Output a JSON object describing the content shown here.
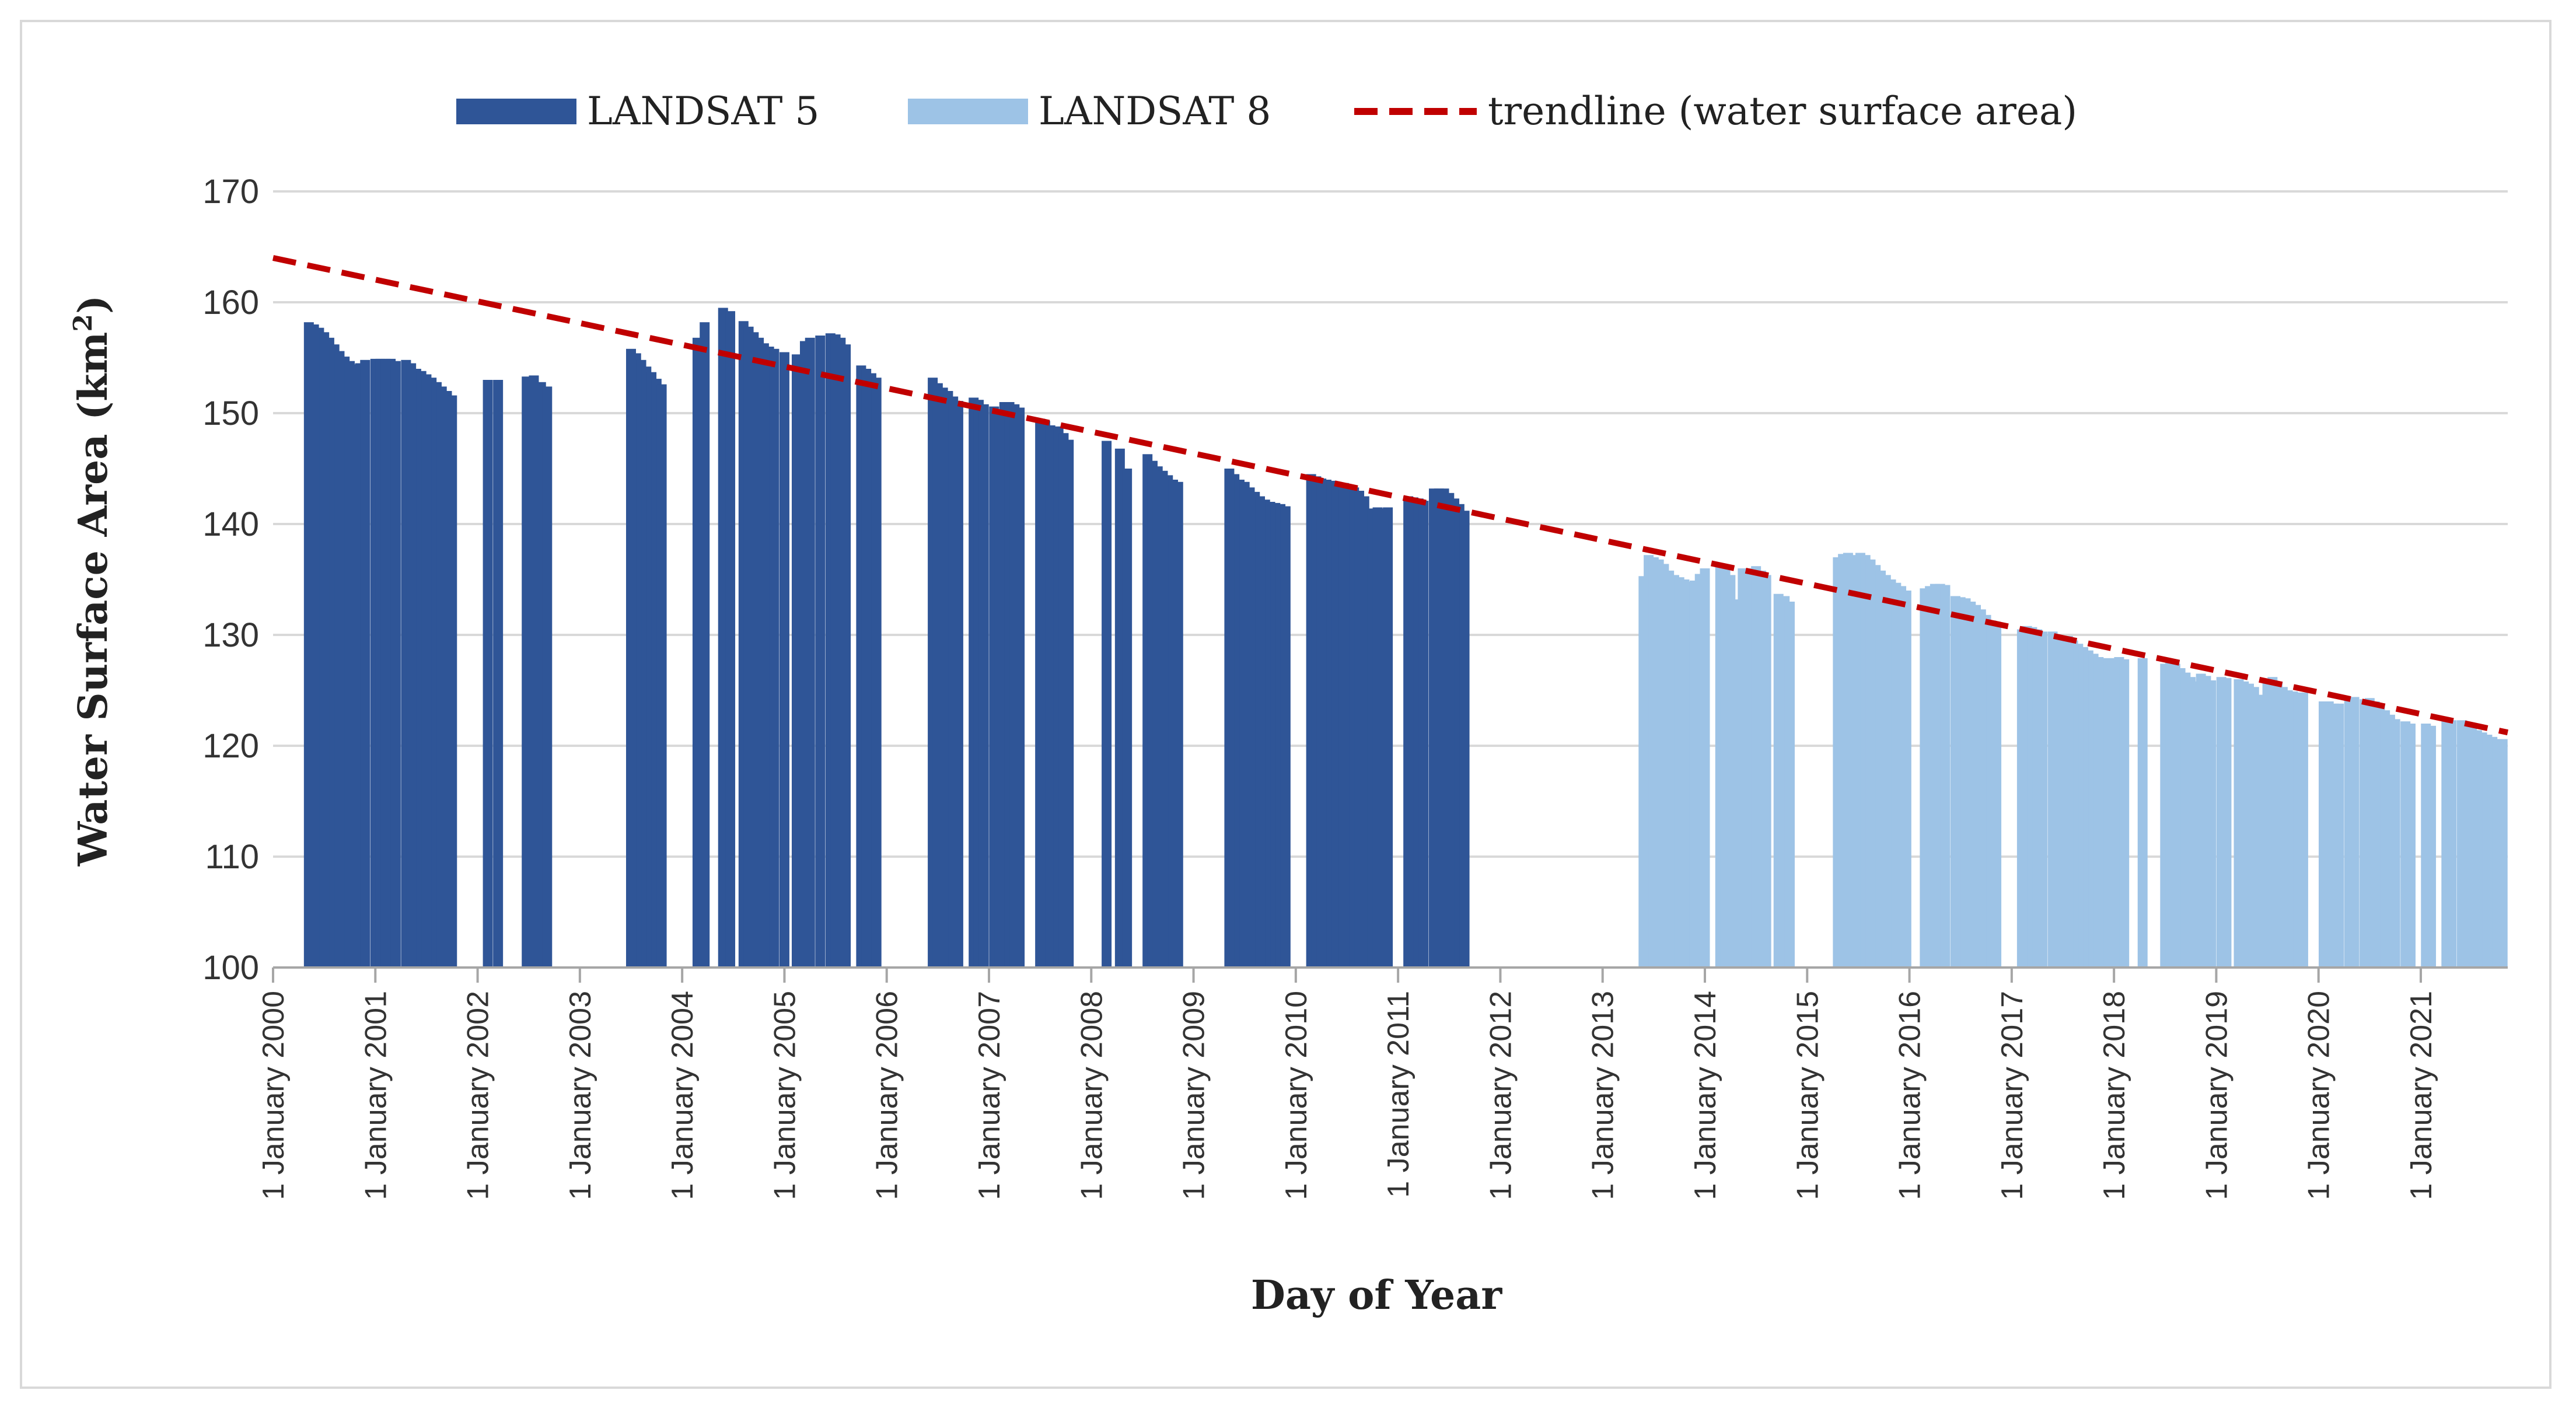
{
  "chart_data": {
    "type": "bar",
    "title": "",
    "xlabel": "Day of Year",
    "ylabel": "Water Surface Area (km",
    "ylabel_superscript": "2",
    "ylabel_close": ")",
    "ylim": [
      100,
      170
    ],
    "yticks": [
      100,
      110,
      120,
      130,
      140,
      150,
      160,
      170
    ],
    "grid": true,
    "legend_position": "top",
    "xlim": [
      2000.0,
      2021.85
    ],
    "x_tick_years": [
      2000,
      2001,
      2002,
      2003,
      2004,
      2005,
      2006,
      2007,
      2008,
      2009,
      2010,
      2011,
      2012,
      2013,
      2014,
      2015,
      2016,
      2017,
      2018,
      2019,
      2020,
      2021
    ],
    "x_tick_labels": [
      "1 January 2000",
      "1 January 2001",
      "1 January 2002",
      "1 January 2003",
      "1 January 2004",
      "1 January 2005",
      "1 January 2006",
      "1 January 2007",
      "1 January 2008",
      "1 January 2009",
      "1 January 2010",
      "1 January 2011",
      "1 January 2012",
      "1 January 2013",
      "1 January 2014",
      "1 January 2015",
      "1 January 2016",
      "1 January 2017",
      "1 January 2018",
      "1 January 2019",
      "1 January 2020",
      "1 January 2021"
    ],
    "series": [
      {
        "name": "LANDSAT 5",
        "color": "#2f5597",
        "points": [
          [
            2000.35,
            158.2
          ],
          [
            2000.4,
            158.0
          ],
          [
            2000.45,
            157.7
          ],
          [
            2000.5,
            157.3
          ],
          [
            2000.55,
            156.8
          ],
          [
            2000.6,
            156.2
          ],
          [
            2000.65,
            155.6
          ],
          [
            2000.7,
            155.1
          ],
          [
            2000.75,
            154.7
          ],
          [
            2000.8,
            154.4
          ],
          [
            2000.85,
            154.5
          ],
          [
            2000.9,
            154.8
          ],
          [
            2001.0,
            154.9
          ],
          [
            2001.05,
            154.9
          ],
          [
            2001.1,
            154.9
          ],
          [
            2001.15,
            154.9
          ],
          [
            2001.2,
            154.7
          ],
          [
            2001.3,
            154.8
          ],
          [
            2001.35,
            154.5
          ],
          [
            2001.4,
            154.0
          ],
          [
            2001.45,
            153.8
          ],
          [
            2001.5,
            153.5
          ],
          [
            2001.55,
            153.2
          ],
          [
            2001.6,
            152.8
          ],
          [
            2001.65,
            152.4
          ],
          [
            2001.7,
            152.0
          ],
          [
            2001.75,
            151.6
          ],
          [
            2002.1,
            153.0
          ],
          [
            2002.2,
            153.0
          ],
          [
            2002.48,
            153.3
          ],
          [
            2002.55,
            153.4
          ],
          [
            2002.62,
            152.8
          ],
          [
            2002.68,
            152.4
          ],
          [
            2003.5,
            155.8
          ],
          [
            2003.55,
            155.4
          ],
          [
            2003.6,
            154.8
          ],
          [
            2003.65,
            154.2
          ],
          [
            2003.7,
            153.7
          ],
          [
            2003.75,
            153.1
          ],
          [
            2003.8,
            152.6
          ],
          [
            2004.15,
            156.8
          ],
          [
            2004.22,
            158.2
          ],
          [
            2004.4,
            159.5
          ],
          [
            2004.47,
            159.2
          ],
          [
            2004.6,
            158.3
          ],
          [
            2004.65,
            157.8
          ],
          [
            2004.7,
            157.3
          ],
          [
            2004.75,
            156.8
          ],
          [
            2004.8,
            156.3
          ],
          [
            2004.85,
            156.0
          ],
          [
            2004.9,
            155.8
          ],
          [
            2005.0,
            155.5
          ],
          [
            2005.12,
            155.3
          ],
          [
            2005.2,
            156.5
          ],
          [
            2005.25,
            156.8
          ],
          [
            2005.35,
            157.0
          ],
          [
            2005.45,
            157.2
          ],
          [
            2005.5,
            157.1
          ],
          [
            2005.55,
            156.8
          ],
          [
            2005.6,
            156.2
          ],
          [
            2005.75,
            154.3
          ],
          [
            2005.8,
            154.0
          ],
          [
            2005.85,
            153.6
          ],
          [
            2005.9,
            153.2
          ],
          [
            2006.45,
            153.2
          ],
          [
            2006.5,
            152.7
          ],
          [
            2006.55,
            152.3
          ],
          [
            2006.6,
            152.0
          ],
          [
            2006.65,
            151.5
          ],
          [
            2006.7,
            151.1
          ],
          [
            2006.85,
            151.4
          ],
          [
            2006.9,
            151.2
          ],
          [
            2006.95,
            150.8
          ],
          [
            2007.05,
            150.6
          ],
          [
            2007.1,
            150.2
          ],
          [
            2007.15,
            151.0
          ],
          [
            2007.2,
            151.0
          ],
          [
            2007.25,
            150.8
          ],
          [
            2007.3,
            150.5
          ],
          [
            2007.5,
            149.5
          ],
          [
            2007.55,
            149.3
          ],
          [
            2007.6,
            148.9
          ],
          [
            2007.68,
            148.8
          ],
          [
            2007.73,
            148.2
          ],
          [
            2007.78,
            147.6
          ],
          [
            2008.15,
            147.5
          ],
          [
            2008.28,
            146.8
          ],
          [
            2008.35,
            145.0
          ],
          [
            2008.55,
            146.3
          ],
          [
            2008.6,
            145.7
          ],
          [
            2008.65,
            145.2
          ],
          [
            2008.7,
            144.8
          ],
          [
            2008.75,
            144.4
          ],
          [
            2008.8,
            144.0
          ],
          [
            2008.85,
            143.8
          ],
          [
            2009.35,
            145.0
          ],
          [
            2009.4,
            144.5
          ],
          [
            2009.45,
            144.0
          ],
          [
            2009.5,
            143.8
          ],
          [
            2009.55,
            143.3
          ],
          [
            2009.6,
            142.9
          ],
          [
            2009.65,
            142.5
          ],
          [
            2009.7,
            142.2
          ],
          [
            2009.75,
            142.0
          ],
          [
            2009.8,
            141.9
          ],
          [
            2009.85,
            141.8
          ],
          [
            2009.9,
            141.6
          ],
          [
            2010.15,
            144.5
          ],
          [
            2010.2,
            144.3
          ],
          [
            2010.25,
            144.1
          ],
          [
            2010.3,
            144.0
          ],
          [
            2010.35,
            143.9
          ],
          [
            2010.4,
            143.8
          ],
          [
            2010.47,
            143.7
          ],
          [
            2010.52,
            143.5
          ],
          [
            2010.57,
            143.3
          ],
          [
            2010.62,
            143.0
          ],
          [
            2010.67,
            142.5
          ],
          [
            2010.75,
            141.4
          ],
          [
            2010.8,
            141.5
          ],
          [
            2010.85,
            141.4
          ],
          [
            2010.9,
            141.5
          ],
          [
            2011.1,
            142.5
          ],
          [
            2011.15,
            142.4
          ],
          [
            2011.2,
            142.3
          ],
          [
            2011.25,
            142.1
          ],
          [
            2011.35,
            143.2
          ],
          [
            2011.4,
            143.2
          ],
          [
            2011.45,
            143.2
          ],
          [
            2011.5,
            142.8
          ],
          [
            2011.55,
            142.3
          ],
          [
            2011.6,
            141.8
          ],
          [
            2011.65,
            141.2
          ]
        ]
      },
      {
        "name": "LANDSAT 8",
        "color": "#9dc3e6",
        "points": [
          [
            2013.4,
            135.3
          ],
          [
            2013.45,
            137.2
          ],
          [
            2013.5,
            137.0
          ],
          [
            2013.55,
            136.8
          ],
          [
            2013.6,
            136.4
          ],
          [
            2013.65,
            135.8
          ],
          [
            2013.7,
            135.4
          ],
          [
            2013.75,
            135.2
          ],
          [
            2013.8,
            135.0
          ],
          [
            2013.85,
            134.8
          ],
          [
            2013.9,
            134.9
          ],
          [
            2013.95,
            135.5
          ],
          [
            2014.0,
            136.0
          ],
          [
            2014.15,
            136.2
          ],
          [
            2014.2,
            136.0
          ],
          [
            2014.25,
            135.4
          ],
          [
            2014.32,
            133.2
          ],
          [
            2014.37,
            136.0
          ],
          [
            2014.45,
            136.0
          ],
          [
            2014.5,
            136.2
          ],
          [
            2014.55,
            135.8
          ],
          [
            2014.6,
            135.4
          ],
          [
            2014.72,
            133.7
          ],
          [
            2014.78,
            133.5
          ],
          [
            2014.83,
            133.0
          ],
          [
            2015.3,
            137.0
          ],
          [
            2015.35,
            137.3
          ],
          [
            2015.4,
            137.4
          ],
          [
            2015.45,
            137.2
          ],
          [
            2015.52,
            137.4
          ],
          [
            2015.57,
            137.2
          ],
          [
            2015.62,
            136.8
          ],
          [
            2015.67,
            136.3
          ],
          [
            2015.72,
            135.8
          ],
          [
            2015.77,
            135.4
          ],
          [
            2015.82,
            135.0
          ],
          [
            2015.87,
            134.7
          ],
          [
            2015.92,
            134.4
          ],
          [
            2015.97,
            134.0
          ],
          [
            2016.15,
            134.2
          ],
          [
            2016.2,
            134.4
          ],
          [
            2016.25,
            134.6
          ],
          [
            2016.3,
            134.6
          ],
          [
            2016.35,
            134.5
          ],
          [
            2016.45,
            133.5
          ],
          [
            2016.5,
            133.4
          ],
          [
            2016.55,
            133.3
          ],
          [
            2016.6,
            133.0
          ],
          [
            2016.65,
            132.7
          ],
          [
            2016.7,
            132.3
          ],
          [
            2016.75,
            131.8
          ],
          [
            2016.8,
            131.3
          ],
          [
            2016.85,
            130.8
          ],
          [
            2017.1,
            130.5
          ],
          [
            2017.15,
            130.8
          ],
          [
            2017.2,
            130.7
          ],
          [
            2017.25,
            130.5
          ],
          [
            2017.3,
            130.3
          ],
          [
            2017.4,
            130.3
          ],
          [
            2017.45,
            130.0
          ],
          [
            2017.5,
            129.8
          ],
          [
            2017.55,
            129.9
          ],
          [
            2017.6,
            129.5
          ],
          [
            2017.65,
            129.2
          ],
          [
            2017.7,
            128.9
          ],
          [
            2017.75,
            128.6
          ],
          [
            2017.8,
            128.3
          ],
          [
            2017.85,
            128.0
          ],
          [
            2017.9,
            127.9
          ],
          [
            2017.95,
            127.9
          ],
          [
            2018.0,
            127.9
          ],
          [
            2018.05,
            128.0
          ],
          [
            2018.1,
            127.8
          ],
          [
            2018.28,
            127.9
          ],
          [
            2018.5,
            127.4
          ],
          [
            2018.55,
            127.7
          ],
          [
            2018.6,
            127.4
          ],
          [
            2018.65,
            127.0
          ],
          [
            2018.7,
            126.6
          ],
          [
            2018.75,
            126.2
          ],
          [
            2018.8,
            125.8
          ],
          [
            2018.85,
            126.5
          ],
          [
            2018.9,
            126.3
          ],
          [
            2018.95,
            125.9
          ],
          [
            2019.05,
            126.2
          ],
          [
            2019.1,
            126.1
          ],
          [
            2019.22,
            126.0
          ],
          [
            2019.27,
            125.8
          ],
          [
            2019.32,
            125.6
          ],
          [
            2019.37,
            125.3
          ],
          [
            2019.45,
            124.6
          ],
          [
            2019.5,
            125.8
          ],
          [
            2019.55,
            126.2
          ],
          [
            2019.6,
            125.8
          ],
          [
            2019.65,
            125.3
          ],
          [
            2019.7,
            125.0
          ],
          [
            2019.75,
            124.9
          ],
          [
            2019.8,
            124.8
          ],
          [
            2019.85,
            124.8
          ],
          [
            2020.05,
            124.0
          ],
          [
            2020.1,
            124.0
          ],
          [
            2020.15,
            123.8
          ],
          [
            2020.2,
            123.8
          ],
          [
            2020.3,
            124.1
          ],
          [
            2020.35,
            124.4
          ],
          [
            2020.45,
            124.2
          ],
          [
            2020.5,
            124.3
          ],
          [
            2020.55,
            124.0
          ],
          [
            2020.6,
            123.6
          ],
          [
            2020.65,
            123.2
          ],
          [
            2020.7,
            122.8
          ],
          [
            2020.75,
            122.4
          ],
          [
            2020.85,
            122.2
          ],
          [
            2020.9,
            122.0
          ],
          [
            2021.05,
            122.0
          ],
          [
            2021.1,
            121.8
          ],
          [
            2021.25,
            122.5
          ],
          [
            2021.3,
            122.3
          ],
          [
            2021.4,
            122.3
          ],
          [
            2021.45,
            122.0
          ],
          [
            2021.5,
            121.7
          ],
          [
            2021.55,
            121.4
          ],
          [
            2021.6,
            121.2
          ],
          [
            2021.65,
            121.0
          ],
          [
            2021.7,
            120.8
          ],
          [
            2021.75,
            120.6
          ],
          [
            2021.8,
            120.6
          ]
        ]
      }
    ],
    "trendline": {
      "name": "trendline (water surface area)",
      "color": "#c00000",
      "x": [
        2000.0,
        2021.85
      ],
      "y": [
        164.0,
        121.2
      ]
    }
  }
}
